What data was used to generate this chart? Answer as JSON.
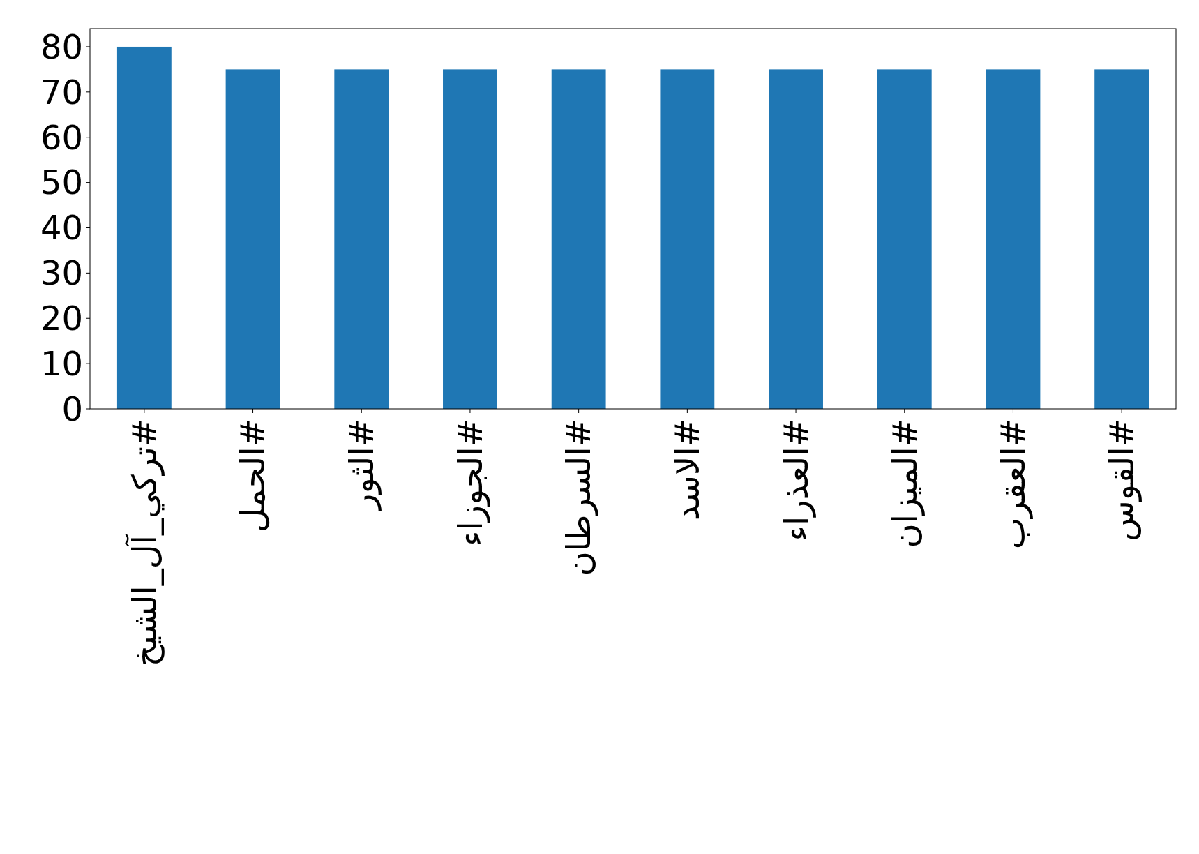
{
  "chart_data": {
    "type": "bar",
    "categories": [
      "#تركي_آل_الشيخ",
      "#الحمل",
      "#الثور",
      "#الجوزاء",
      "#السرطان",
      "#الاسد",
      "#العذراء",
      "#الميزان",
      "#العقرب",
      "#القوس"
    ],
    "values": [
      80,
      75,
      75,
      75,
      75,
      75,
      75,
      75,
      75,
      75
    ],
    "color": "#1f77b4",
    "ylim": [
      0,
      84
    ],
    "yticks": [
      0,
      10,
      20,
      30,
      40,
      50,
      60,
      70,
      80
    ],
    "grid": false
  }
}
